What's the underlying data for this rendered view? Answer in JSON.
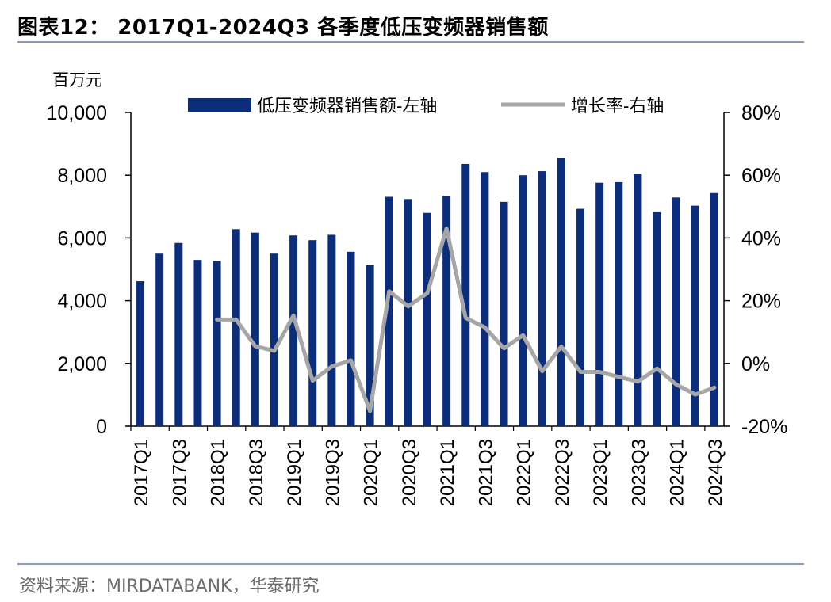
{
  "figure_title": "图表12： 2017Q1-2024Q3 各季度低压变频器销售额",
  "source": "资料来源：MIRDATABANK，华泰研究",
  "colors": {
    "bar": "#0c2e7a",
    "line": "#a6a6a6",
    "rule": "#8a9bb8"
  },
  "chart_data": {
    "type": "bar+line",
    "title": "2017Q1-2024Q3 各季度低压变频器销售额",
    "unit_left": "百万元",
    "left_axis": {
      "min": 0,
      "max": 10000,
      "step": 2000,
      "tick_labels": [
        "0",
        "2,000",
        "4,000",
        "6,000",
        "8,000",
        "10,000"
      ]
    },
    "right_axis": {
      "min": -20,
      "max": 80,
      "step": 20,
      "tick_labels": [
        "-20%",
        "0%",
        "20%",
        "40%",
        "60%",
        "80%"
      ]
    },
    "legend": [
      "低压变频器销售额-左轴",
      "增长率-右轴"
    ],
    "categories": [
      "2017Q1",
      "2017Q2",
      "2017Q3",
      "2017Q4",
      "2018Q1",
      "2018Q2",
      "2018Q3",
      "2018Q4",
      "2019Q1",
      "2019Q2",
      "2019Q3",
      "2019Q4",
      "2020Q1",
      "2020Q2",
      "2020Q3",
      "2020Q4",
      "2021Q1",
      "2021Q2",
      "2021Q3",
      "2021Q4",
      "2022Q1",
      "2022Q2",
      "2022Q3",
      "2022Q4",
      "2023Q1",
      "2023Q2",
      "2023Q3",
      "2023Q4",
      "2024Q1",
      "2024Q2",
      "2024Q3"
    ],
    "x_tick_labels": [
      "2017Q1",
      "2017Q3",
      "2018Q1",
      "2018Q3",
      "2019Q1",
      "2019Q3",
      "2020Q1",
      "2020Q3",
      "2021Q1",
      "2021Q3",
      "2022Q1",
      "2022Q3",
      "2023Q1",
      "2023Q3",
      "2024Q1",
      "2024Q3"
    ],
    "series": [
      {
        "name": "低压变频器销售额-左轴",
        "type": "bar",
        "axis": "left",
        "values": [
          4620,
          5500,
          5840,
          5300,
          5270,
          6280,
          6170,
          5500,
          6080,
          5930,
          6100,
          5560,
          5130,
          7310,
          7240,
          6800,
          7340,
          8360,
          8100,
          7150,
          8000,
          8130,
          8550,
          6930,
          7760,
          7780,
          8030,
          6820,
          7290,
          7030,
          7430
        ]
      },
      {
        "name": "增长率-右轴",
        "type": "line",
        "axis": "right",
        "values": [
          null,
          null,
          null,
          null,
          14,
          14,
          5.5,
          4,
          15.3,
          -5.5,
          -1,
          1,
          -15.2,
          23,
          18.2,
          22.4,
          43,
          14.5,
          11.5,
          4.8,
          9,
          -2.5,
          5.4,
          -2.7,
          -2.7,
          -4.3,
          -5.8,
          -1.6,
          -6.7,
          -9.9,
          -7.7
        ]
      }
    ]
  }
}
